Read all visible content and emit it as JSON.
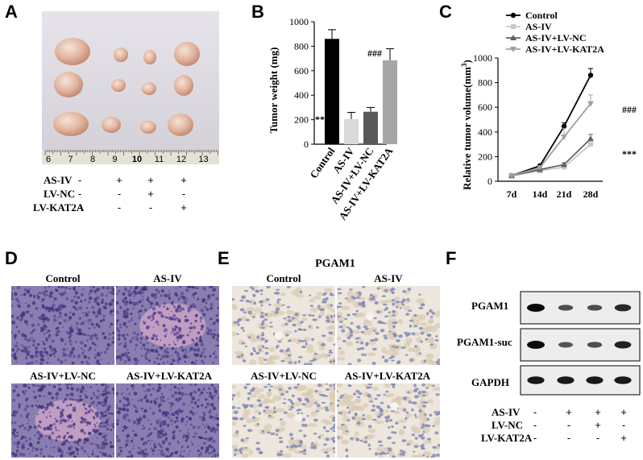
{
  "panels": {
    "A": {
      "letter": "A",
      "ruler_numbers": [
        "6",
        "7",
        "8",
        "9",
        "10",
        "11",
        "12",
        "13"
      ],
      "rows": [
        {
          "label": "AS-IV",
          "signs": [
            "-",
            "+",
            "+",
            "+"
          ]
        },
        {
          "label": "LV-NC",
          "signs": [
            "-",
            "-",
            "+",
            "-"
          ]
        },
        {
          "label": "LV-KAT2A",
          "signs": [
            "-",
            "-",
            "-",
            "+"
          ]
        }
      ]
    },
    "B": {
      "letter": "B",
      "ylabel": "Tumor weight (mg)",
      "yticks": [
        "0",
        "200",
        "400",
        "600",
        "800",
        "1000"
      ],
      "significance": [
        "***",
        "###"
      ]
    },
    "C": {
      "letter": "C",
      "ylabel": "Relative tumor volume(mm",
      "ylabel_sup": "3",
      "ylabel_end": ")",
      "yticks": [
        "0",
        "200",
        "400",
        "600",
        "800",
        "1000"
      ],
      "xticks": [
        "7d",
        "14d",
        "21d",
        "28d"
      ],
      "significance": [
        "###",
        "***"
      ]
    },
    "D": {
      "letter": "D",
      "titles": [
        "Control",
        "AS-IV",
        "AS-IV+LV-NC",
        "AS-IV+LV-KAT2A"
      ]
    },
    "E": {
      "letter": "E",
      "heading": "PGAM1",
      "titles": [
        "Control",
        "AS-IV",
        "AS-IV+LV-NC",
        "AS-IV+LV-KAT2A"
      ]
    },
    "F": {
      "letter": "F",
      "bands": [
        "PGAM1",
        "PGAM1-suc",
        "GAPDH"
      ],
      "rows": [
        {
          "label": "AS-IV",
          "signs": [
            "-",
            "+",
            "+",
            "+"
          ]
        },
        {
          "label": "LV-NC",
          "signs": [
            "-",
            "-",
            "+",
            "-"
          ]
        },
        {
          "label": "LV-KAT2A",
          "signs": [
            "-",
            "-",
            "-",
            "+"
          ]
        }
      ]
    }
  },
  "chart_data": [
    {
      "type": "bar",
      "panel": "B",
      "categories": [
        "Control",
        "AS-IV",
        "AS-IV+LV-NC",
        "AS-IV+LV-KAT2A"
      ],
      "values": [
        860,
        205,
        265,
        685
      ],
      "errors": [
        75,
        55,
        35,
        95
      ],
      "colors": [
        "#000000",
        "#d9d9d9",
        "#595959",
        "#a6a6a6"
      ],
      "ylabel": "Tumor weight (mg)",
      "ylim": [
        0,
        1000
      ]
    },
    {
      "type": "line",
      "panel": "C",
      "x": [
        "7d",
        "14d",
        "21d",
        "28d"
      ],
      "series": [
        {
          "name": "Control",
          "values": [
            45,
            125,
            445,
            860
          ],
          "errors": [
            5,
            10,
            30,
            55
          ],
          "color": "#000000",
          "marker": "circle"
        },
        {
          "name": "AS-IV",
          "values": [
            45,
            85,
            115,
            300
          ],
          "errors": [
            5,
            8,
            15,
            45
          ],
          "color": "#c8c8c8",
          "marker": "square"
        },
        {
          "name": "AS-IV+LV-NC",
          "values": [
            45,
            95,
            135,
            345
          ],
          "errors": [
            5,
            8,
            15,
            35
          ],
          "color": "#606060",
          "marker": "triangle"
        },
        {
          "name": "AS-IV+LV-KAT2A",
          "values": [
            45,
            110,
            360,
            630
          ],
          "errors": [
            5,
            10,
            70,
            70
          ],
          "color": "#a0a0a0",
          "marker": "triangle-down"
        }
      ],
      "ylabel": "Relative tumor volume(mm3)",
      "ylim": [
        0,
        1000
      ]
    }
  ]
}
